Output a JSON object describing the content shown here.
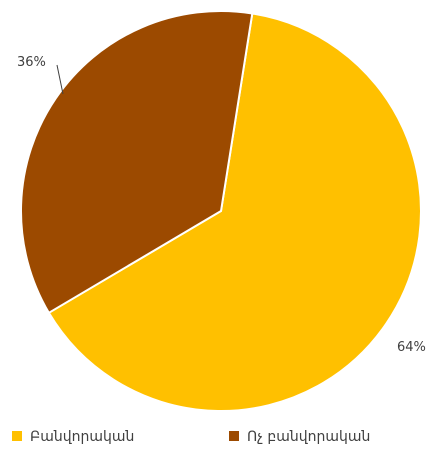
{
  "chart_data": {
    "type": "pie",
    "categories": [
      "Բանվորական",
      "Ոչ բանվորական"
    ],
    "values": [
      64,
      36
    ],
    "labels": [
      "64%",
      "36%"
    ],
    "colors": [
      "#FFC000",
      "#9C4A00"
    ],
    "legend_position": "bottom",
    "title": ""
  }
}
